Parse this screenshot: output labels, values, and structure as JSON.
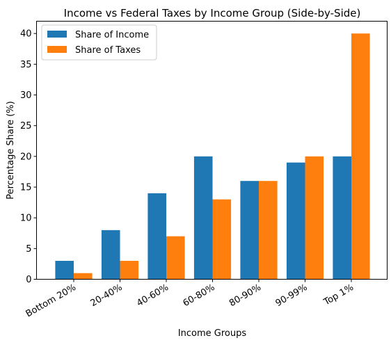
{
  "chart_data": {
    "type": "bar",
    "title": "Income vs Federal Taxes by Income Group (Side-by-Side)",
    "xlabel": "Income Groups",
    "ylabel": "Percentage Share (%)",
    "categories": [
      "Bottom 20%",
      "20-40%",
      "40-60%",
      "60-80%",
      "80-90%",
      "90-99%",
      "Top 1%"
    ],
    "series": [
      {
        "name": "Share of Income",
        "color": "#1f77b4",
        "values": [
          3,
          8,
          14,
          20,
          16,
          19,
          20
        ]
      },
      {
        "name": "Share of Taxes",
        "color": "#ff7f0e",
        "values": [
          1,
          3,
          7,
          13,
          16,
          20,
          40
        ]
      }
    ],
    "ylim": [
      0,
      42
    ],
    "yticks": [
      0,
      5,
      10,
      15,
      20,
      25,
      30,
      35,
      40
    ],
    "grid": false,
    "legend_position": "top-left"
  }
}
